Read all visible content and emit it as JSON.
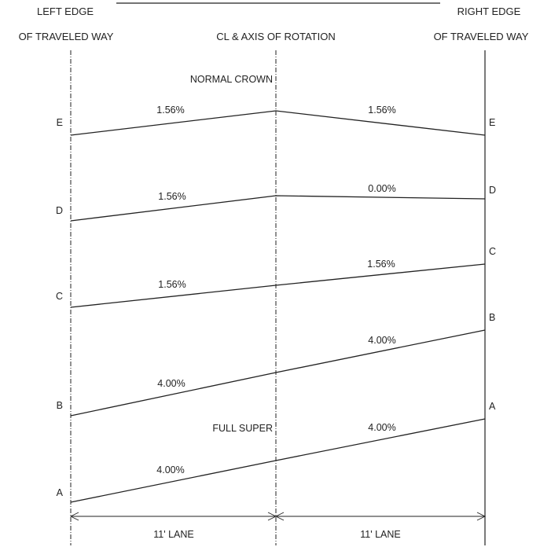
{
  "headers": {
    "left_edge_line1": "LEFT EDGE",
    "left_edge_line2": "OF TRAVELED WAY",
    "centerline": "CL & AXIS OF ROTATION",
    "right_edge_line1": "RIGHT EDGE",
    "right_edge_line2": "OF TRAVELED WAY"
  },
  "captions": {
    "normal_crown": "NORMAL CROWN",
    "full_super": "FULL SUPER"
  },
  "sections": [
    {
      "id": "E",
      "left_label": "E",
      "right_label": "E",
      "left_slope": "1.56%",
      "right_slope": "1.56%"
    },
    {
      "id": "D",
      "left_label": "D",
      "right_label": "D",
      "left_slope": "1.56%",
      "right_slope": "0.00%"
    },
    {
      "id": "C",
      "left_label": "C",
      "right_label": "C",
      "left_slope": "1.56%",
      "right_slope": "1.56%"
    },
    {
      "id": "B",
      "left_label": "B",
      "right_label": "B",
      "left_slope": "4.00%",
      "right_slope": "4.00%"
    },
    {
      "id": "A",
      "left_label": "A",
      "right_label": "A",
      "left_slope": "4.00%",
      "right_slope": "4.00%"
    }
  ],
  "dimensions": {
    "left_lane": "11' LANE",
    "right_lane": "11' LANE"
  }
}
